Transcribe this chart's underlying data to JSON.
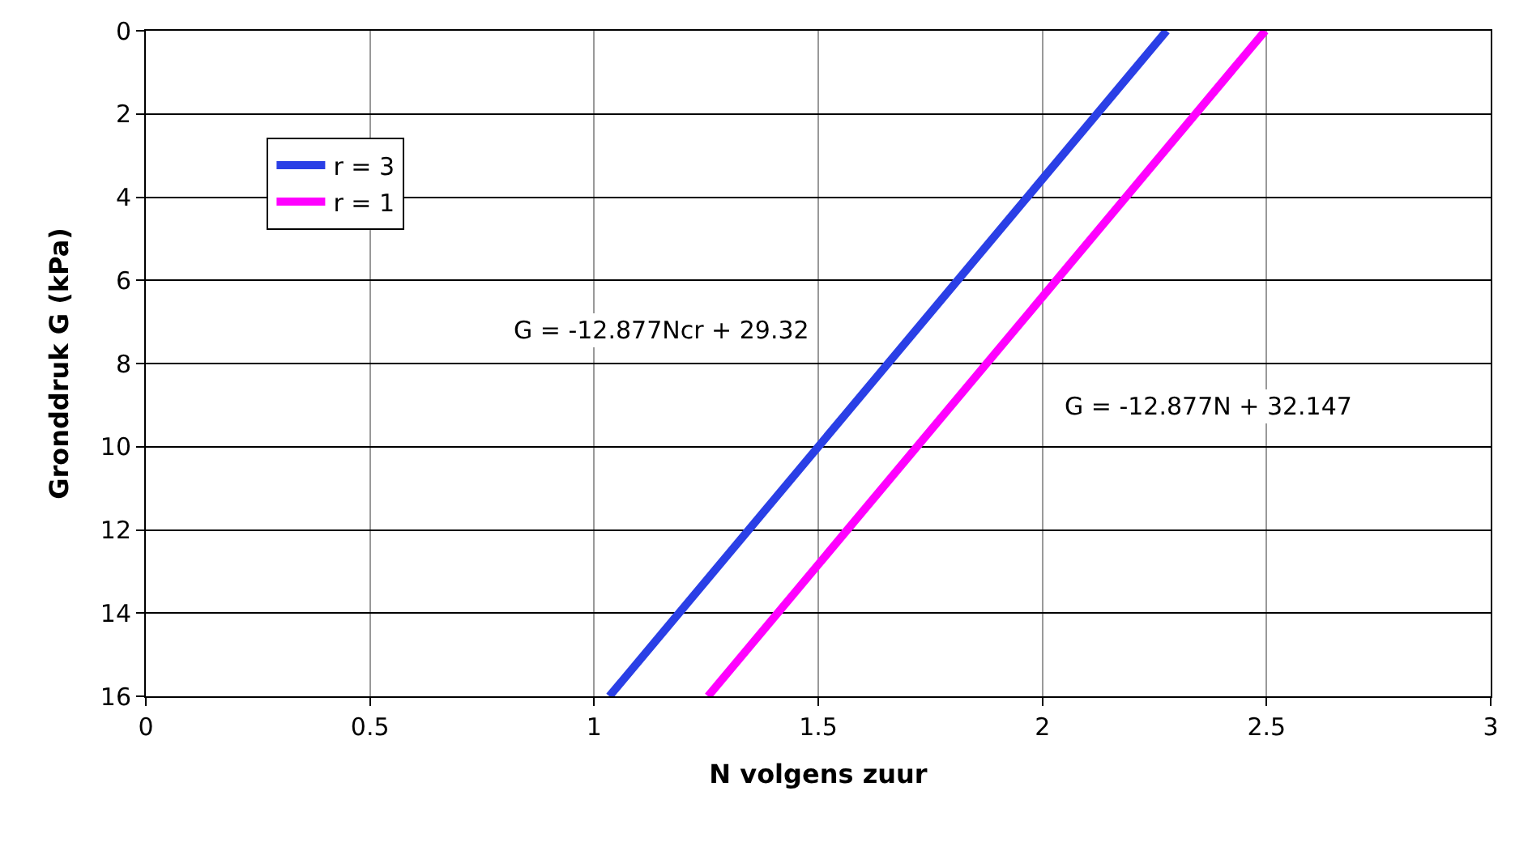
{
  "chart_data": {
    "type": "line",
    "xlabel": "N volgens zuur",
    "ylabel": "Gronddruk G (kPa)",
    "series": [
      {
        "name": "r = 3",
        "color": "#2a3fe6",
        "x": [
          1.034,
          2.277
        ],
        "values": [
          16,
          0
        ]
      },
      {
        "name": "r = 1",
        "color": "#ff00ff",
        "x": [
          1.254,
          2.497
        ],
        "values": [
          16,
          0
        ]
      }
    ],
    "annotations": [
      "G = -12.877Ncr + 29.32",
      "G = -12.877N + 32.147"
    ],
    "xlim": [
      0,
      3
    ],
    "xticks": [
      0,
      0.5,
      1,
      1.5,
      2,
      2.5,
      3
    ],
    "ylim": [
      16,
      0
    ],
    "yticks": [
      0,
      2,
      4,
      6,
      8,
      10,
      12,
      14,
      16
    ],
    "grid": true,
    "legend": "top left",
    "marker": "none",
    "line_style": "solid"
  }
}
